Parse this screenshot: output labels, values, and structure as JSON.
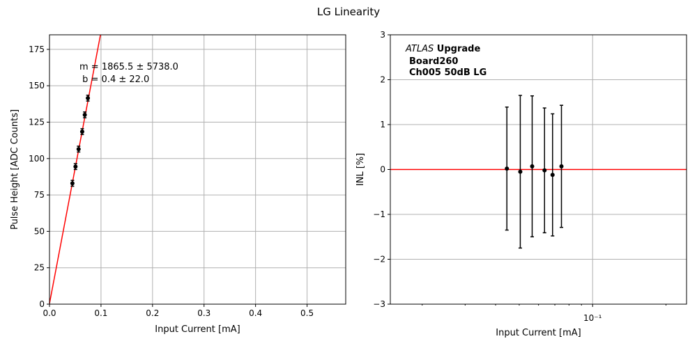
{
  "figure_title": "LG Linearity",
  "chart_data": [
    {
      "type": "scatter",
      "xlabel": "Input Current [mA]",
      "ylabel": "Pulse Height [ADC Counts]",
      "xlim": [
        0,
        0.575
      ],
      "ylim": [
        0,
        185
      ],
      "x_ticks": [
        0.0,
        0.1,
        0.2,
        0.3,
        0.4,
        0.5
      ],
      "x_tick_labels": [
        "0.0",
        "0.1",
        "0.2",
        "0.3",
        "0.4",
        "0.5"
      ],
      "y_ticks": [
        0,
        25,
        50,
        75,
        100,
        125,
        150,
        175
      ],
      "y_tick_labels": [
        "0",
        "25",
        "50",
        "75",
        "100",
        "125",
        "150",
        "175"
      ],
      "grid": true,
      "points": [
        {
          "x": 0.0445,
          "y": 83.0,
          "err": 2.0
        },
        {
          "x": 0.0505,
          "y": 94.5,
          "err": 2.0
        },
        {
          "x": 0.0565,
          "y": 106.5,
          "err": 2.0
        },
        {
          "x": 0.0635,
          "y": 118.5,
          "err": 2.0
        },
        {
          "x": 0.0685,
          "y": 130.0,
          "err": 2.0
        },
        {
          "x": 0.0745,
          "y": 141.5,
          "err": 2.0
        }
      ],
      "fit_line": {
        "slope": 1865.5,
        "intercept": 0.4,
        "color": "#ff0000"
      },
      "annotations": [
        "m = 1865.5 ± 5738.0",
        " b = 0.4 ± 22.0"
      ],
      "marker_color": "#000000"
    },
    {
      "type": "scatter",
      "xscale": "log",
      "xlabel": "Input Current [mA]",
      "ylabel": "INL [%]",
      "xlim": [
        0.0148,
        0.2428
      ],
      "ylim": [
        -3,
        3
      ],
      "x_major_tick_labels": [
        "10⁻¹"
      ],
      "y_ticks": [
        -3,
        -2,
        -1,
        0,
        1,
        2,
        3
      ],
      "y_tick_labels": [
        "−3",
        "−2",
        "−1",
        "0",
        "1",
        "2",
        "3"
      ],
      "grid": true,
      "points": [
        {
          "x": 0.0445,
          "y": 0.02,
          "err": 1.37
        },
        {
          "x": 0.0505,
          "y": -0.05,
          "err": 1.7
        },
        {
          "x": 0.0565,
          "y": 0.07,
          "err": 1.57
        },
        {
          "x": 0.0635,
          "y": -0.02,
          "err": 1.39
        },
        {
          "x": 0.0685,
          "y": -0.12,
          "err": 1.36
        },
        {
          "x": 0.0745,
          "y": 0.07,
          "err": 1.36
        }
      ],
      "reference_line": {
        "y": 0,
        "color": "#ff0000"
      },
      "annotations": {
        "atlas_italic": "ATLAS",
        "atlas_bold": " Upgrade",
        "board": "Board260",
        "channel": "Ch005 50dB LG"
      },
      "marker_color": "#000000"
    }
  ]
}
